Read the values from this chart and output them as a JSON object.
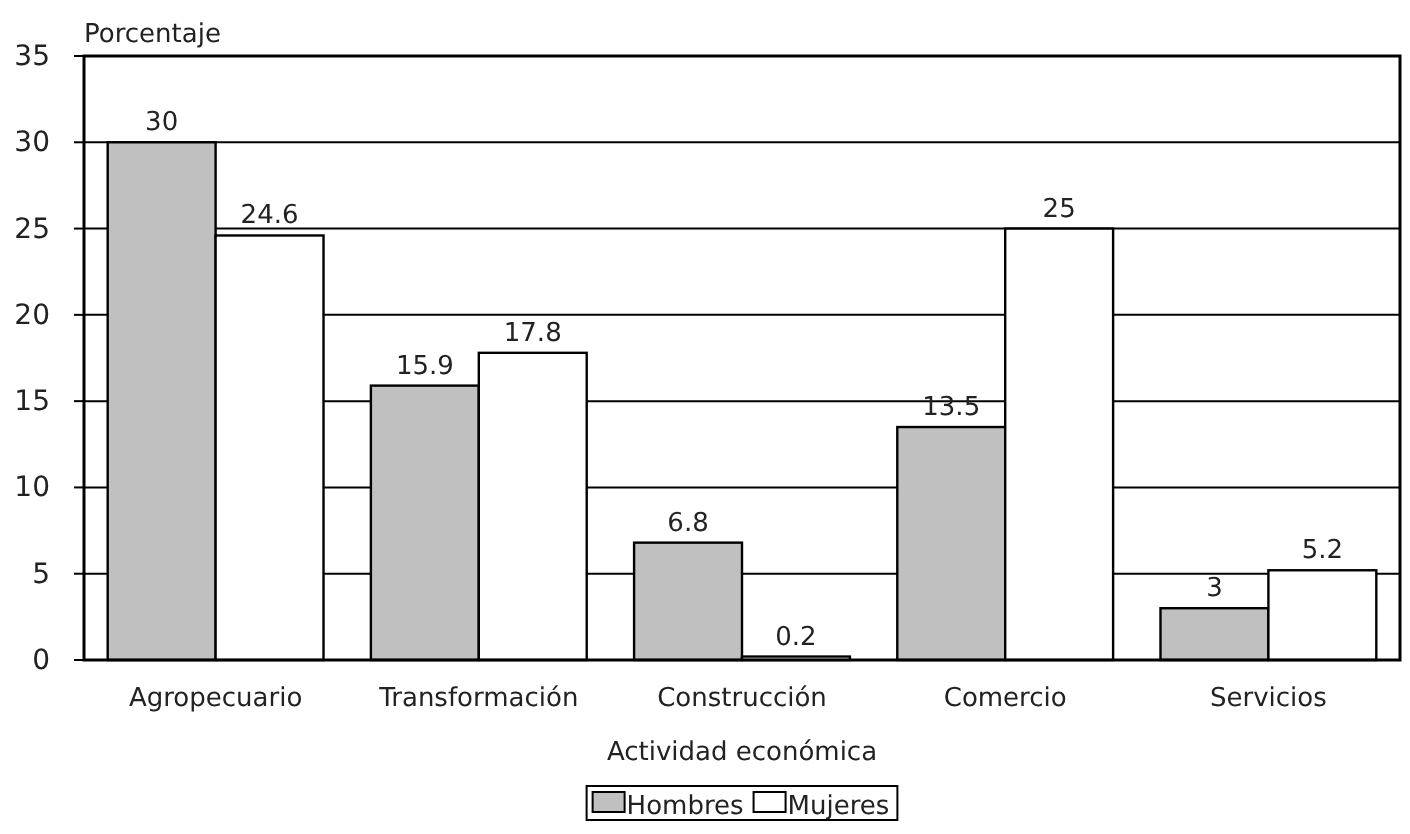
{
  "chart_data": {
    "type": "bar",
    "ylabel": "Porcentaje",
    "xlabel": "Actividad económica",
    "categories": [
      "Agropecuario",
      "Transformación",
      "Construcción",
      "Comercio",
      "Servicios"
    ],
    "series": [
      {
        "name": "Hombres",
        "color": "#c0c0c0",
        "values": [
          30,
          15.9,
          6.8,
          13.5,
          3
        ]
      },
      {
        "name": "Mujeres",
        "color": "#ffffff",
        "values": [
          24.6,
          17.8,
          0.2,
          25,
          5.2
        ]
      }
    ],
    "ylim": [
      0,
      35
    ],
    "yticks": [
      0,
      5,
      10,
      15,
      20,
      25,
      30,
      35
    ],
    "grid": "y",
    "legend": "bottom",
    "data_labels": true
  }
}
